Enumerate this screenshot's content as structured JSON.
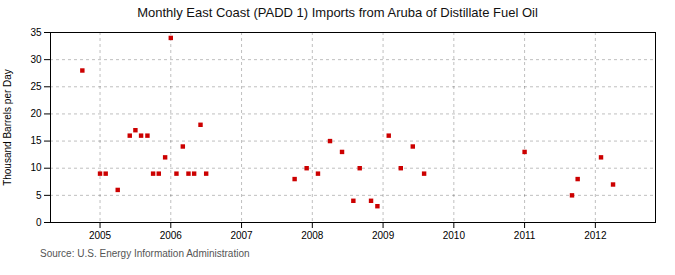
{
  "chart_data": {
    "type": "scatter",
    "title": "Monthly East Coast (PADD 1) Imports from Aruba of Distillate Fuel Oil",
    "ylabel": "Thousand Barrels per Day",
    "source": "Source: U.S. Energy Information Administration",
    "x": [
      2004.75,
      2005.0,
      2005.08,
      2005.25,
      2005.42,
      2005.5,
      2005.58,
      2005.67,
      2005.75,
      2005.83,
      2005.92,
      2006.0,
      2006.08,
      2006.17,
      2006.25,
      2006.33,
      2006.42,
      2006.5,
      2007.75,
      2007.92,
      2008.08,
      2008.25,
      2008.42,
      2008.58,
      2008.67,
      2008.83,
      2008.92,
      2009.08,
      2009.25,
      2009.42,
      2009.58,
      2011.0,
      2011.67,
      2011.75,
      2012.08,
      2012.25
    ],
    "values": [
      28,
      9,
      9,
      6,
      16,
      17,
      16,
      16,
      9,
      9,
      12,
      34,
      9,
      14,
      9,
      9,
      18,
      9,
      8,
      10,
      9,
      15,
      13,
      4,
      10,
      4,
      3,
      16,
      10,
      14,
      9,
      13,
      5,
      8,
      12,
      7
    ],
    "color": "#cc0000",
    "marker": "square",
    "xlim": [
      2004.3,
      2012.85
    ],
    "xticks": [
      2005,
      2006,
      2007,
      2008,
      2009,
      2010,
      2011,
      2012
    ],
    "ylim": [
      0,
      35
    ],
    "yticks": [
      0,
      5,
      10,
      15,
      20,
      25,
      30,
      35
    ],
    "grid": true
  }
}
